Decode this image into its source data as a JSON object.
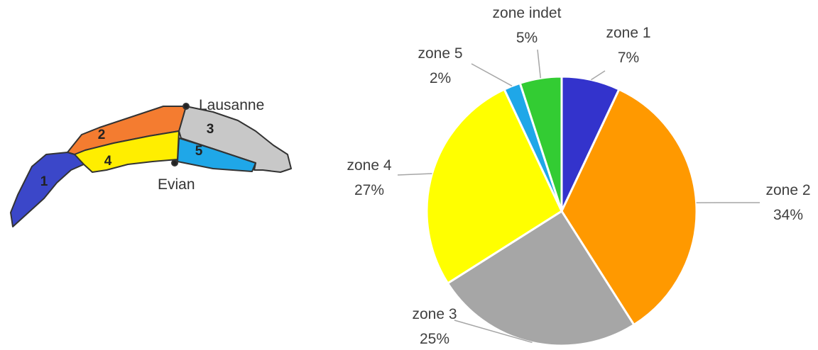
{
  "chart_data": {
    "type": "pie",
    "categories": [
      "zone 1",
      "zone 2",
      "zone 3",
      "zone 4",
      "zone 5",
      "zone indet"
    ],
    "values": [
      7,
      34,
      25,
      27,
      2,
      5
    ],
    "value_labels": [
      "7%",
      "34%",
      "25%",
      "27%",
      "2%",
      "5%"
    ],
    "colors": [
      "#3333cc",
      "#ff9900",
      "#a6a6a6",
      "#ffff00",
      "#1fa7e8",
      "#33cc33"
    ]
  },
  "map": {
    "zone_labels": [
      "1",
      "2",
      "3",
      "4",
      "5"
    ],
    "cities": [
      "Lausanne",
      "Evian"
    ]
  }
}
